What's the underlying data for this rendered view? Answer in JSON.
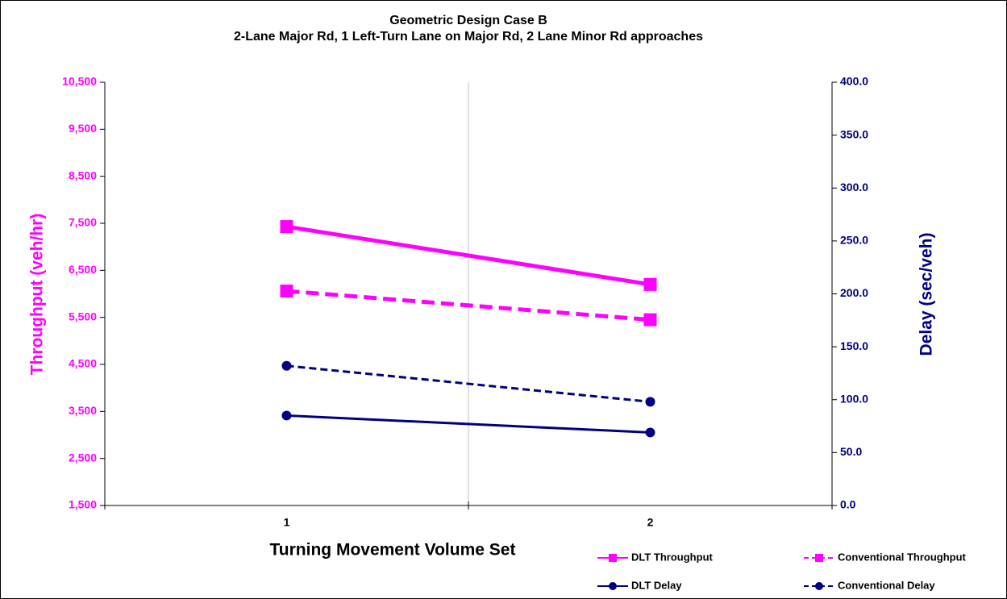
{
  "chart_data": {
    "type": "line",
    "title": "Geometric Design Case B",
    "subtitle": "2-Lane Major Rd, 1 Left-Turn Lane on Major Rd, 2 Lane Minor Rd approaches",
    "x_label": "Turning Movement Volume Set",
    "y_label": "Throughput (veh/hr)",
    "y2_label": "Delay (sec/veh)",
    "categories": [
      "1",
      "2"
    ],
    "ylim": [
      1500,
      10500
    ],
    "yticks": [
      {
        "value": 1500,
        "label": "1,500"
      },
      {
        "value": 2500,
        "label": "2,500"
      },
      {
        "value": 3500,
        "label": "3,500"
      },
      {
        "value": 4500,
        "label": "4,500"
      },
      {
        "value": 5500,
        "label": "5,500"
      },
      {
        "value": 6500,
        "label": "6,500"
      },
      {
        "value": 7500,
        "label": "7,500"
      },
      {
        "value": 8500,
        "label": "8,500"
      },
      {
        "value": 9500,
        "label": "9,500"
      },
      {
        "value": 10500,
        "label": "10,500"
      }
    ],
    "y2lim": [
      0,
      400
    ],
    "y2ticks": [
      {
        "value": 0,
        "label": "0.0"
      },
      {
        "value": 50,
        "label": "50.0"
      },
      {
        "value": 100,
        "label": "100.0"
      },
      {
        "value": 150,
        "label": "150.0"
      },
      {
        "value": 200,
        "label": "200.0"
      },
      {
        "value": 250,
        "label": "250.0"
      },
      {
        "value": 300,
        "label": "300.0"
      },
      {
        "value": 350,
        "label": "350.0"
      },
      {
        "value": 400,
        "label": "400.0"
      }
    ],
    "legend_position": "bottom-right",
    "series": [
      {
        "name": "DLT Throughput",
        "color": "#ff00ff",
        "values": [
          7430,
          6200
        ],
        "marker": "square",
        "line_style": "solid"
      },
      {
        "name": "Conventional Throughput",
        "color": "#ff00ff",
        "values": [
          6060,
          5450
        ],
        "marker": "square",
        "line_style": "dashed"
      },
      {
        "name": "DLT Delay",
        "color": "#000080",
        "values": [
          85,
          69
        ],
        "marker": "circle",
        "line_style": "solid",
        "axis": "y2"
      },
      {
        "name": "Conventional Delay",
        "color": "#000080",
        "values": [
          132,
          98
        ],
        "marker": "circle",
        "line_style": "dashed",
        "axis": "y2"
      }
    ]
  }
}
